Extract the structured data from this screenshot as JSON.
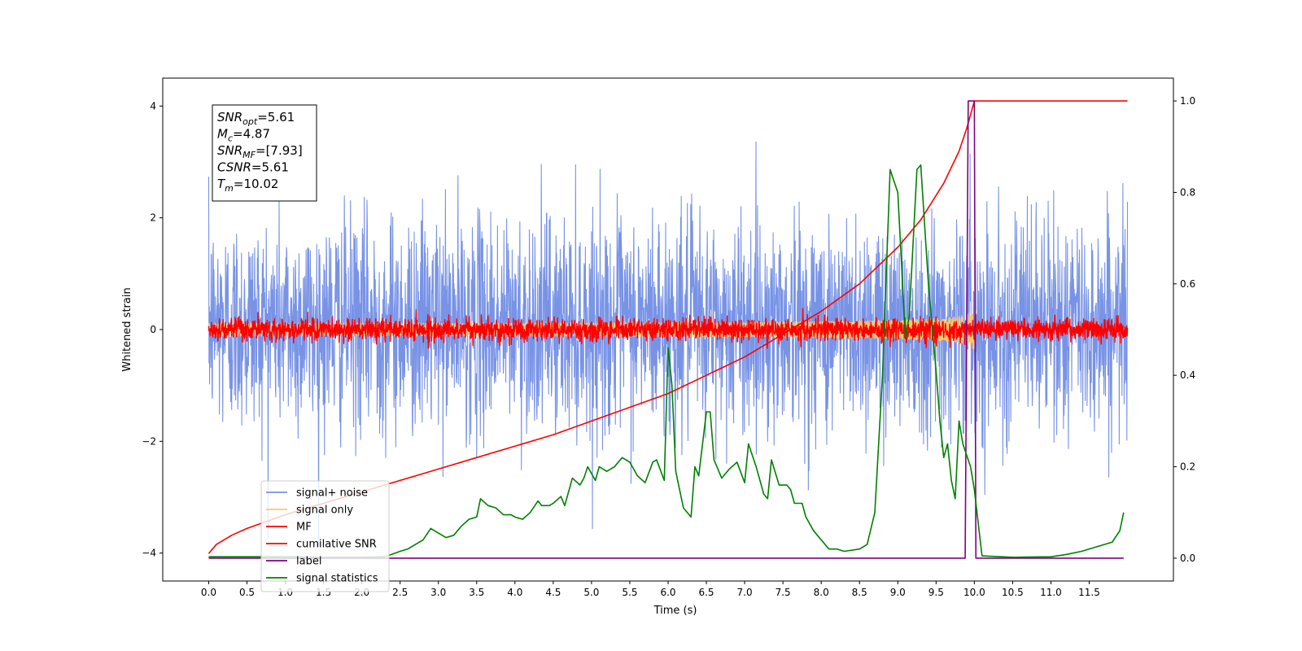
{
  "chart_data": {
    "type": "line",
    "xlabel": "Time (s)",
    "ylabel": "Whitened strain",
    "xlim": [
      -0.6,
      12.6
    ],
    "ylim": [
      -4.5,
      4.5
    ],
    "y2lim": [
      -0.05,
      1.05
    ],
    "xticks": [
      0.0,
      0.5,
      1.0,
      1.5,
      2.0,
      2.5,
      3.0,
      3.5,
      4.0,
      4.5,
      5.0,
      5.5,
      6.0,
      6.5,
      7.0,
      7.5,
      8.0,
      8.5,
      9.0,
      9.5,
      10.0,
      10.5,
      11.0,
      11.5
    ],
    "xtick_labels": [
      "0.0",
      "0.5",
      "1.0",
      "1.5",
      "2.0",
      "2.5",
      "3.0",
      "3.5",
      "4.0",
      "4.5",
      "5.0",
      "5.5",
      "6.0",
      "6.5",
      "7.0",
      "7.5",
      "8.0",
      "8.5",
      "9.0",
      "9.5",
      "10.0",
      "10.5",
      "11.0",
      "11.5"
    ],
    "yticks": [
      -4,
      -2,
      0,
      2,
      4
    ],
    "ytick_labels": [
      "−4",
      "−2",
      "0",
      "2",
      "4"
    ],
    "y2ticks": [
      0.0,
      0.2,
      0.4,
      0.6,
      0.8,
      1.0
    ],
    "y2tick_labels": [
      "0.0",
      "0.2",
      "0.4",
      "0.6",
      "0.8",
      "1.0"
    ],
    "grid": false,
    "legend_position": "lower-left",
    "annotation": {
      "lines": [
        {
          "var": "SNR",
          "sub": "opt",
          "value": "=5.61"
        },
        {
          "var": "M",
          "sub": "c",
          "value": "=4.87"
        },
        {
          "var": "SNR",
          "sub": "MF",
          "value": "=[7.93]"
        },
        {
          "var": "CSNR",
          "sub": "",
          "value": "=5.61"
        },
        {
          "var": "T",
          "sub": "m",
          "value": "=10.02"
        }
      ]
    },
    "series": [
      {
        "name": "signal+ noise",
        "axis": "left",
        "color": "#7893e6",
        "kind": "noise",
        "x_range": [
          0.0,
          12.0
        ],
        "noise_sigma": 0.95,
        "noise_offset": 0.1,
        "peak_min": -4.0,
        "peak_max": 4.1
      },
      {
        "name": "signal only",
        "axis": "left",
        "color": "#fcc96b",
        "kind": "chirp",
        "x_range": [
          0.0,
          10.02
        ],
        "amplitude_start": 0.02,
        "amplitude_end": 0.35,
        "merger_time": 10.02
      },
      {
        "name": "MF",
        "axis": "left",
        "color": "#ff0000",
        "kind": "noise",
        "x_range": [
          0.0,
          12.0
        ],
        "noise_sigma": 0.1,
        "noise_offset": 0.0,
        "peak_min": -0.45,
        "peak_max": 0.45
      },
      {
        "name": "cumilative SNR",
        "axis": "right",
        "color": "#ff0000",
        "x": [
          0.0,
          0.1,
          0.3,
          0.5,
          1.0,
          1.5,
          2.0,
          2.5,
          3.0,
          3.5,
          4.0,
          4.5,
          5.0,
          5.5,
          6.0,
          6.5,
          7.0,
          7.5,
          8.0,
          8.5,
          9.0,
          9.3,
          9.6,
          9.8,
          9.9,
          9.95,
          10.0,
          10.02,
          10.5,
          11.0,
          11.5,
          12.0
        ],
        "y": [
          0.01,
          0.03,
          0.05,
          0.065,
          0.095,
          0.12,
          0.145,
          0.17,
          0.195,
          0.22,
          0.245,
          0.27,
          0.3,
          0.33,
          0.36,
          0.4,
          0.44,
          0.49,
          0.54,
          0.6,
          0.68,
          0.74,
          0.82,
          0.89,
          0.94,
          0.97,
          1.0,
          1.0,
          1.0,
          1.0,
          1.0,
          1.0
        ]
      },
      {
        "name": "label",
        "axis": "right",
        "color": "#800080",
        "x": [
          0.0,
          9.88,
          9.92,
          10.0,
          10.02,
          10.06,
          11.95
        ],
        "y": [
          0.0,
          0.0,
          1.0,
          1.0,
          0.0,
          0.0,
          0.0
        ]
      },
      {
        "name": "signal statistics",
        "axis": "right",
        "color": "#008000",
        "x": [
          0.0,
          0.5,
          1.0,
          1.5,
          2.0,
          2.3,
          2.5,
          2.6,
          2.7,
          2.8,
          2.9,
          3.0,
          3.1,
          3.2,
          3.3,
          3.4,
          3.5,
          3.55,
          3.65,
          3.75,
          3.85,
          3.95,
          4.0,
          4.1,
          4.2,
          4.3,
          4.35,
          4.45,
          4.5,
          4.6,
          4.65,
          4.75,
          4.85,
          4.9,
          4.95,
          5.05,
          5.1,
          5.2,
          5.3,
          5.4,
          5.5,
          5.6,
          5.7,
          5.8,
          5.85,
          5.95,
          6.0,
          6.05,
          6.1,
          6.2,
          6.3,
          6.35,
          6.4,
          6.5,
          6.55,
          6.6,
          6.7,
          6.8,
          6.9,
          7.0,
          7.05,
          7.15,
          7.25,
          7.3,
          7.35,
          7.45,
          7.55,
          7.6,
          7.65,
          7.75,
          7.8,
          7.9,
          8.0,
          8.1,
          8.2,
          8.3,
          8.5,
          8.6,
          8.7,
          8.8,
          8.9,
          9.0,
          9.1,
          9.15,
          9.25,
          9.3,
          9.4,
          9.5,
          9.55,
          9.6,
          9.65,
          9.7,
          9.75,
          9.8,
          9.85,
          9.95,
          10.0,
          10.1,
          10.5,
          11.0,
          11.2,
          11.4,
          11.6,
          11.8,
          11.9,
          11.95
        ],
        "y": [
          0.003,
          0.003,
          0.003,
          0.002,
          0.002,
          0.003,
          0.015,
          0.02,
          0.03,
          0.04,
          0.065,
          0.055,
          0.045,
          0.05,
          0.07,
          0.085,
          0.09,
          0.13,
          0.115,
          0.11,
          0.095,
          0.095,
          0.09,
          0.085,
          0.1,
          0.125,
          0.115,
          0.115,
          0.12,
          0.135,
          0.115,
          0.175,
          0.16,
          0.175,
          0.2,
          0.17,
          0.2,
          0.19,
          0.2,
          0.22,
          0.21,
          0.18,
          0.165,
          0.21,
          0.215,
          0.17,
          0.46,
          0.38,
          0.19,
          0.11,
          0.09,
          0.2,
          0.18,
          0.32,
          0.32,
          0.215,
          0.175,
          0.195,
          0.21,
          0.165,
          0.25,
          0.2,
          0.14,
          0.13,
          0.215,
          0.16,
          0.16,
          0.15,
          0.12,
          0.12,
          0.09,
          0.06,
          0.04,
          0.02,
          0.02,
          0.015,
          0.02,
          0.03,
          0.1,
          0.4,
          0.85,
          0.8,
          0.48,
          0.53,
          0.85,
          0.86,
          0.6,
          0.41,
          0.3,
          0.22,
          0.25,
          0.17,
          0.13,
          0.3,
          0.25,
          0.2,
          0.15,
          0.005,
          0.002,
          0.003,
          0.008,
          0.015,
          0.025,
          0.035,
          0.06,
          0.1
        ]
      }
    ]
  }
}
